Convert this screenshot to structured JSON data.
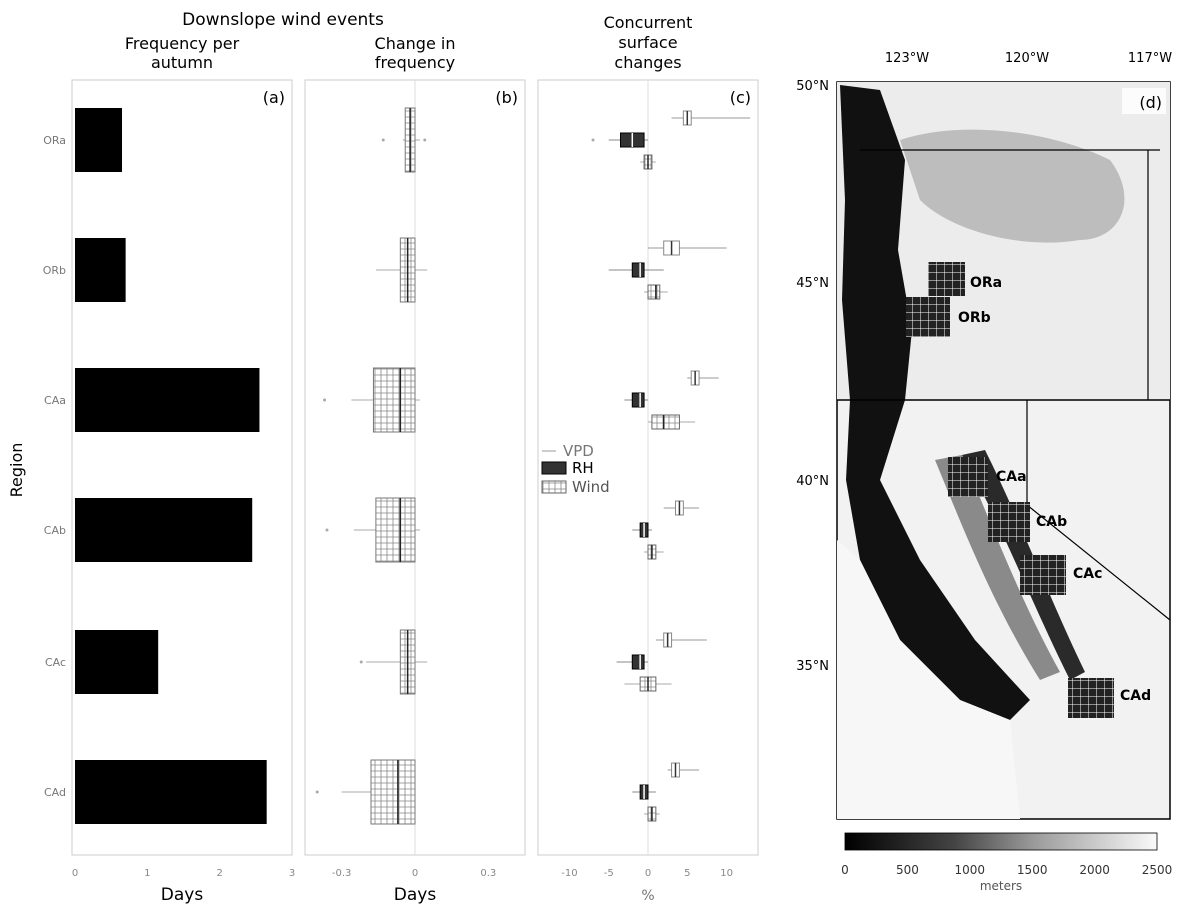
{
  "figure_title": "Downslope wind events",
  "y_axis_label": "Region",
  "regions": [
    "ORa",
    "ORb",
    "CAa",
    "CAb",
    "CAc",
    "CAd"
  ],
  "colors": {
    "bar": "#000000",
    "rh": "#333333",
    "wind": "#ffffff",
    "frame": "#cccccc"
  },
  "chart_data": [
    {
      "type": "bar",
      "panel_label": "(a)",
      "title": "Frequency per autumn",
      "title_lines": [
        "Frequency per",
        "autumn"
      ],
      "xlabel": "Days",
      "orientation": "horizontal",
      "categories": [
        "ORa",
        "ORb",
        "CAa",
        "CAb",
        "CAc",
        "CAd"
      ],
      "values": [
        0.65,
        0.7,
        2.55,
        2.45,
        1.15,
        2.65
      ],
      "xlim": [
        0,
        3
      ],
      "xticks": [
        "0",
        "1",
        "2",
        "3"
      ],
      "grid": false
    },
    {
      "type": "box",
      "panel_label": "(b)",
      "title": "Change in frequency",
      "title_lines": [
        "Change in",
        "frequency"
      ],
      "xlabel": "Days",
      "xlim": [
        -0.45,
        0.45
      ],
      "xticks": [
        "-0.3",
        "0",
        "0.3"
      ],
      "categories": [
        "ORa",
        "ORb",
        "CAa",
        "CAb",
        "CAc",
        "CAd"
      ],
      "series": [
        {
          "boxes": [
            {
              "whisker_lo": -0.05,
              "q1": -0.04,
              "median": -0.02,
              "q3": 0.0,
              "whisker_hi": 0.02,
              "outliers": [
                -0.13,
                0.04
              ]
            },
            {
              "whisker_lo": -0.16,
              "q1": -0.06,
              "median": -0.03,
              "q3": 0.0,
              "whisker_hi": 0.05,
              "outliers": []
            },
            {
              "whisker_lo": -0.26,
              "q1": -0.17,
              "median": -0.06,
              "q3": 0.0,
              "whisker_hi": 0.02,
              "outliers": [
                -0.37
              ]
            },
            {
              "whisker_lo": -0.25,
              "q1": -0.16,
              "median": -0.06,
              "q3": 0.0,
              "whisker_hi": 0.02,
              "outliers": [
                -0.36
              ]
            },
            {
              "whisker_lo": -0.2,
              "q1": -0.06,
              "median": -0.03,
              "q3": 0.0,
              "whisker_hi": 0.05,
              "outliers": [
                -0.22
              ]
            },
            {
              "whisker_lo": -0.3,
              "q1": -0.18,
              "median": -0.07,
              "q3": 0.0,
              "whisker_hi": 0.0,
              "outliers": [
                -0.4
              ]
            }
          ]
        }
      ]
    },
    {
      "type": "box",
      "panel_label": "(c)",
      "title": "Concurrent surface changes",
      "title_lines": [
        "Concurrent",
        "surface",
        "changes"
      ],
      "xlabel": "%",
      "xlim": [
        -14,
        14
      ],
      "xticks": [
        "-10",
        "-5",
        "0",
        "5",
        "10"
      ],
      "categories": [
        "ORa",
        "ORb",
        "CAa",
        "CAb",
        "CAc",
        "CAd"
      ],
      "legend_position": "center-left",
      "series": [
        {
          "name": "VPD",
          "boxes": [
            {
              "whisker_lo": 3,
              "q1": 4.5,
              "median": 5,
              "q3": 5.5,
              "whisker_hi": 13,
              "outliers": []
            },
            {
              "whisker_lo": 0,
              "q1": 2,
              "median": 3,
              "q3": 4,
              "whisker_hi": 10,
              "outliers": []
            },
            {
              "whisker_lo": 5,
              "q1": 5.5,
              "median": 6,
              "q3": 6.5,
              "whisker_hi": 9,
              "outliers": []
            },
            {
              "whisker_lo": 2,
              "q1": 3.5,
              "median": 4,
              "q3": 4.5,
              "whisker_hi": 6.5,
              "outliers": []
            },
            {
              "whisker_lo": 1,
              "q1": 2,
              "median": 2.5,
              "q3": 3,
              "whisker_hi": 7.5,
              "outliers": []
            },
            {
              "whisker_lo": 2.5,
              "q1": 3,
              "median": 3.5,
              "q3": 4,
              "whisker_hi": 6.5,
              "outliers": []
            }
          ]
        },
        {
          "name": "RH",
          "boxes": [
            {
              "whisker_lo": -5,
              "q1": -3.5,
              "median": -2,
              "q3": -0.5,
              "whisker_hi": 0,
              "outliers": [
                -7
              ]
            },
            {
              "whisker_lo": -5,
              "q1": -2,
              "median": -1,
              "q3": -0.5,
              "whisker_hi": 2,
              "outliers": []
            },
            {
              "whisker_lo": -3,
              "q1": -2,
              "median": -1,
              "q3": -0.5,
              "whisker_hi": 0,
              "outliers": []
            },
            {
              "whisker_lo": -2,
              "q1": -1,
              "median": -0.5,
              "q3": 0,
              "whisker_hi": 0.5,
              "outliers": []
            },
            {
              "whisker_lo": -4,
              "q1": -2,
              "median": -1,
              "q3": -0.5,
              "whisker_hi": 0,
              "outliers": []
            },
            {
              "whisker_lo": -2,
              "q1": -1,
              "median": -0.5,
              "q3": 0,
              "whisker_hi": 1,
              "outliers": []
            }
          ]
        },
        {
          "name": "Wind",
          "boxes": [
            {
              "whisker_lo": -1,
              "q1": -0.5,
              "median": 0,
              "q3": 0.5,
              "whisker_hi": 1,
              "outliers": []
            },
            {
              "whisker_lo": -0.5,
              "q1": 0,
              "median": 1,
              "q3": 1.5,
              "whisker_hi": 2.5,
              "outliers": []
            },
            {
              "whisker_lo": 0,
              "q1": 0.5,
              "median": 2,
              "q3": 4,
              "whisker_hi": 6,
              "outliers": []
            },
            {
              "whisker_lo": -0.5,
              "q1": 0,
              "median": 0.5,
              "q3": 1,
              "whisker_hi": 2,
              "outliers": []
            },
            {
              "whisker_lo": -3,
              "q1": -1,
              "median": 0,
              "q3": 1,
              "whisker_hi": 3,
              "outliers": []
            },
            {
              "whisker_lo": -0.5,
              "q1": 0,
              "median": 0.5,
              "q3": 1,
              "whisker_hi": 1.5,
              "outliers": []
            }
          ]
        }
      ]
    }
  ],
  "map": {
    "panel_label": "(d)",
    "lon_labels": [
      "123°W",
      "120°W",
      "117°W"
    ],
    "lat_labels": [
      "50°N",
      "45°N",
      "40°N",
      "35°N"
    ],
    "region_labels": [
      "ORa",
      "ORb",
      "CAa",
      "CAb",
      "CAc",
      "CAd"
    ],
    "colorbar": {
      "ticks": [
        "0",
        "500",
        "1000",
        "1500",
        "2000",
        "2500"
      ],
      "label": "meters",
      "range": [
        0,
        2500
      ]
    }
  }
}
